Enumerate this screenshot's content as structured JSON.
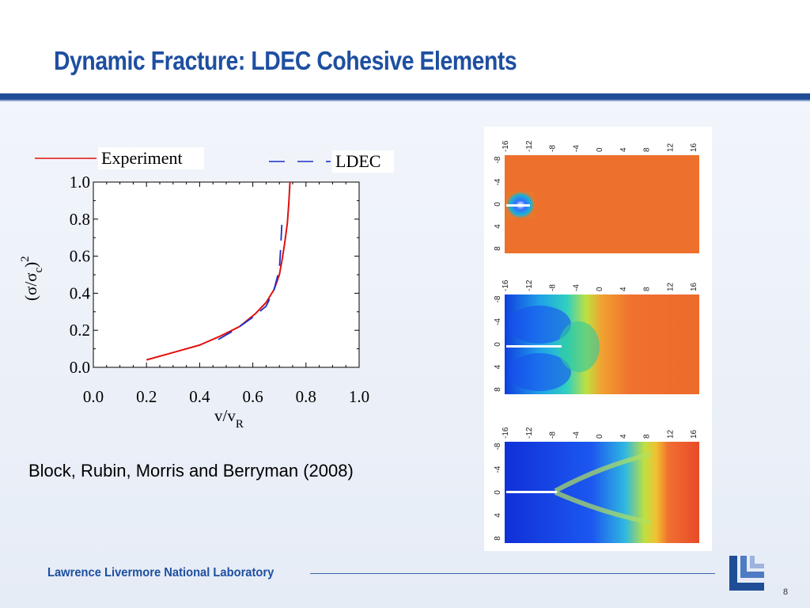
{
  "slide": {
    "title": "Dynamic Fracture: LDEC Cohesive Elements",
    "citation": "Block, Rubin, Morris and Berryman (2008)",
    "footer": "Lawrence Livermore National Laboratory",
    "page_number": "8"
  },
  "colors": {
    "title": "#1e4fa0",
    "rule": "#1f4e96",
    "experiment_line": "#e01010",
    "ldec_line": "#1a2ec8"
  },
  "legend": {
    "experiment": "Experiment",
    "ldec": "LDEC"
  },
  "chart_data": {
    "type": "line",
    "xlabel": "v/v",
    "xlabel_sub": "R",
    "ylabel_main": "(σ/σ",
    "ylabel_sub": "c",
    "ylabel_close": ")",
    "ylabel_sup": "2",
    "xlim": [
      0.0,
      1.0
    ],
    "ylim": [
      0.0,
      1.0
    ],
    "x_ticks": [
      "0.0",
      "0.2",
      "0.4",
      "0.6",
      "0.8",
      "1.0"
    ],
    "y_ticks": [
      "0.0",
      "0.2",
      "0.4",
      "0.6",
      "0.8",
      "1.0"
    ],
    "grid": false,
    "legend_position": "top",
    "series": [
      {
        "name": "Experiment",
        "style": "solid",
        "x": [
          0.2,
          0.3,
          0.4,
          0.48,
          0.55,
          0.61,
          0.65,
          0.68,
          0.7,
          0.71,
          0.72,
          0.73,
          0.735,
          0.74
        ],
        "y": [
          0.04,
          0.08,
          0.12,
          0.17,
          0.22,
          0.29,
          0.35,
          0.42,
          0.5,
          0.58,
          0.67,
          0.78,
          0.88,
          1.0
        ]
      },
      {
        "name": "LDEC",
        "style": "dashed",
        "x": [
          0.47,
          0.53,
          0.6,
          0.65,
          0.68,
          0.7,
          0.705,
          0.71
        ],
        "y": [
          0.15,
          0.2,
          0.27,
          0.33,
          0.42,
          0.53,
          0.65,
          0.8
        ]
      }
    ]
  },
  "simulations": [
    {
      "top_ticks": [
        "-16",
        "-12",
        "-8",
        "-4",
        "0",
        "4",
        "8",
        "12",
        "16"
      ],
      "side_ticks": [
        "-8",
        "-4",
        "0",
        "4",
        "8"
      ]
    },
    {
      "top_ticks": [
        "-16",
        "-12",
        "-8",
        "-4",
        "0",
        "4",
        "8",
        "12",
        "16"
      ],
      "side_ticks": [
        "-8",
        "-4",
        "0",
        "4",
        "8"
      ]
    },
    {
      "top_ticks": [
        "-16",
        "-12",
        "-8",
        "-4",
        "0",
        "4",
        "8",
        "12",
        "16"
      ],
      "side_ticks": [
        "-8",
        "-4",
        "0",
        "4",
        "8"
      ]
    }
  ]
}
